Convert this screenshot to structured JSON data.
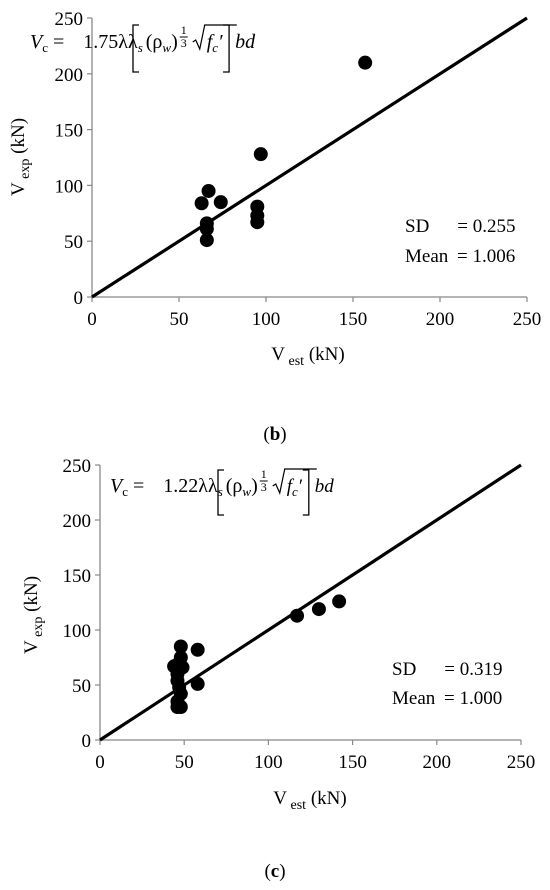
{
  "chart_data": [
    {
      "type": "scatter",
      "panel_label": "b",
      "xlabel": "V",
      "xlabel_sub": "est",
      "xlabel_unit": "(kN)",
      "ylabel": "V",
      "ylabel_sub": "exp",
      "ylabel_unit": "(kN)",
      "xlim": [
        0,
        250
      ],
      "ylim": [
        0,
        250
      ],
      "xticks": [
        0,
        50,
        100,
        150,
        200,
        250
      ],
      "yticks": [
        0,
        50,
        100,
        150,
        200,
        250
      ],
      "grid": false,
      "reference_line": {
        "from": [
          0,
          0
        ],
        "to": [
          250,
          250
        ]
      },
      "formula": {
        "lhs": "V",
        "lhs_sub": "c",
        "coef": "1.75λλ",
        "coef_sub": "s",
        "rho": "(ρ",
        "rho_sub": "w",
        "rho_close": ")",
        "fc": "f",
        "fc_sub": "c",
        "fc_prime": "′",
        "tail": "bd"
      },
      "stats": {
        "sd_label": "SD",
        "sd_value": "= 0.255",
        "mean_label": "Mean",
        "mean_value": "= 1.006"
      },
      "points": [
        {
          "x": 63,
          "y": 84
        },
        {
          "x": 67,
          "y": 95
        },
        {
          "x": 74,
          "y": 85
        },
        {
          "x": 66,
          "y": 66
        },
        {
          "x": 66,
          "y": 61
        },
        {
          "x": 66,
          "y": 51
        },
        {
          "x": 95,
          "y": 81
        },
        {
          "x": 95,
          "y": 73
        },
        {
          "x": 95,
          "y": 67
        },
        {
          "x": 97,
          "y": 128
        },
        {
          "x": 157,
          "y": 210
        }
      ]
    },
    {
      "type": "scatter",
      "panel_label": "c",
      "xlabel": "V",
      "xlabel_sub": "est",
      "xlabel_unit": "(kN)",
      "ylabel": "V",
      "ylabel_sub": "exp",
      "ylabel_unit": "(kN)",
      "xlim": [
        0,
        250
      ],
      "ylim": [
        0,
        250
      ],
      "xticks": [
        0,
        50,
        100,
        150,
        200,
        250
      ],
      "yticks": [
        0,
        50,
        100,
        150,
        200,
        250
      ],
      "grid": false,
      "reference_line": {
        "from": [
          0,
          0
        ],
        "to": [
          250,
          250
        ]
      },
      "formula": {
        "lhs": "V",
        "lhs_sub": "c",
        "coef": "1.22λλ",
        "coef_sub": "s",
        "rho": "(ρ",
        "rho_sub": "w",
        "rho_close": ")",
        "fc": "f",
        "fc_sub": "c",
        "fc_prime": "′",
        "tail": "bd"
      },
      "stats": {
        "sd_label": "SD",
        "sd_value": "= 0.319",
        "mean_label": "Mean",
        "mean_value": "= 1.000"
      },
      "points": [
        {
          "x": 44,
          "y": 67
        },
        {
          "x": 48,
          "y": 85
        },
        {
          "x": 58,
          "y": 82
        },
        {
          "x": 48,
          "y": 75
        },
        {
          "x": 47,
          "y": 70
        },
        {
          "x": 49,
          "y": 66
        },
        {
          "x": 46,
          "y": 60
        },
        {
          "x": 46,
          "y": 54
        },
        {
          "x": 47,
          "y": 48
        },
        {
          "x": 48,
          "y": 42
        },
        {
          "x": 46,
          "y": 35
        },
        {
          "x": 46,
          "y": 30
        },
        {
          "x": 48,
          "y": 30
        },
        {
          "x": 58,
          "y": 51
        },
        {
          "x": 117,
          "y": 113
        },
        {
          "x": 130,
          "y": 119
        },
        {
          "x": 142,
          "y": 126
        }
      ]
    }
  ]
}
